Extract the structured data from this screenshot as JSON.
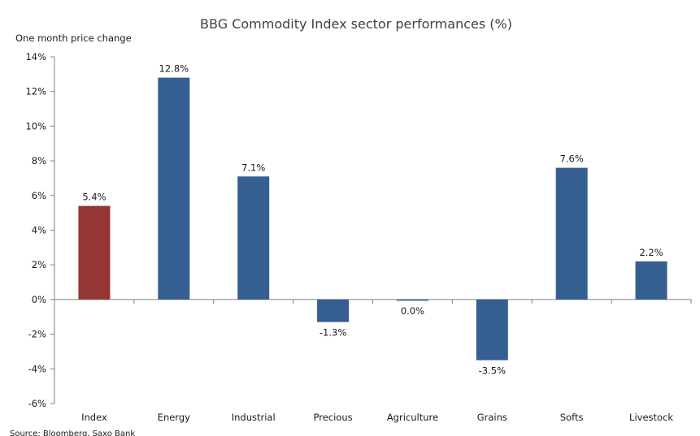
{
  "chart_data": {
    "type": "bar",
    "title": "BBG Commodity Index sector performances (%)",
    "subtitle": "One month price change",
    "source": "Source: Bloomberg, Saxo Bank",
    "categories": [
      "Index",
      "Energy",
      "Industrial",
      "Precious",
      "Agriculture",
      "Grains",
      "Softs",
      "Livestock"
    ],
    "values": [
      5.4,
      12.8,
      7.1,
      -1.3,
      -0.05,
      -3.5,
      7.6,
      2.2
    ],
    "data_labels": [
      "5.4%",
      "12.8%",
      "7.1%",
      "-1.3%",
      "0.0%",
      "-3.5%",
      "7.6%",
      "2.2%"
    ],
    "ylim": [
      -6,
      14
    ],
    "yticks": [
      -6,
      -4,
      -2,
      0,
      2,
      4,
      6,
      8,
      10,
      12,
      14
    ],
    "ytick_labels": [
      "-6%",
      "-4%",
      "-2%",
      "0%",
      "2%",
      "4%",
      "6%",
      "8%",
      "10%",
      "12%",
      "14%"
    ],
    "grid": false,
    "legend": "none",
    "colors": {
      "highlight": "#943634",
      "default": "#365f91",
      "axis": "#808080",
      "text": "#1a1a1a"
    },
    "highlight_index": 0
  }
}
